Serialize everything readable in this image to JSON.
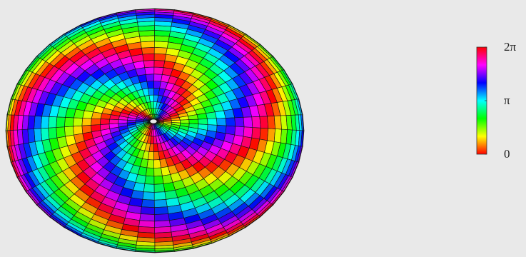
{
  "chart_data": {
    "type": "surface3d",
    "colorbar": {
      "clim": [
        0,
        6.28318
      ],
      "cticks": [
        0,
        {
          "value": 3.14159,
          "label": "π"
        },
        {
          "value": 6.28318,
          "label": "2π"
        }
      ]
    }
  }
}
